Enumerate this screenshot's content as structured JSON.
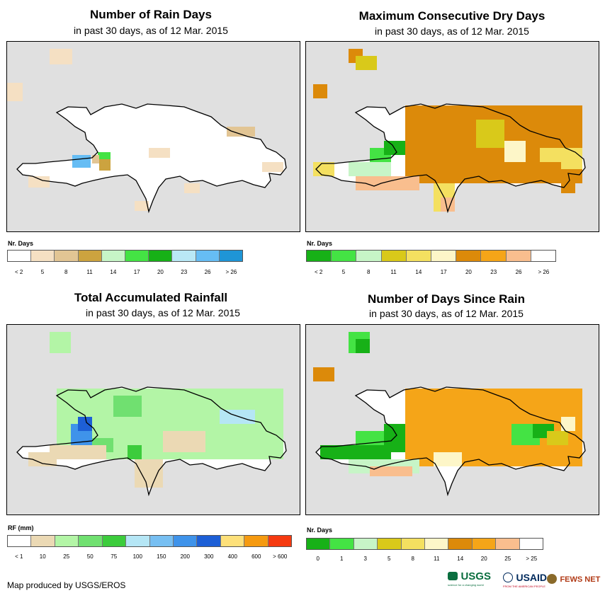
{
  "panels": [
    {
      "id": "rain-days",
      "title": "Number of Rain Days",
      "subtitle": "in past 30 days, as of 12 Mar. 2015",
      "legend_title": "Nr. Days",
      "legend_colors": [
        "#ffffff",
        "#f5e0c3",
        "#e2c594",
        "#cca33f",
        "#c7f5c7",
        "#44e344",
        "#17b117",
        "#b9e8f6",
        "#66bdf4",
        "#1f95d6"
      ],
      "legend_labels": [
        "< 2",
        "5",
        "8",
        "11",
        "14",
        "17",
        "20",
        "23",
        "26",
        "> 26"
      ],
      "legend_label_mode": "center"
    },
    {
      "id": "max-dry-days",
      "title": "Maximum Consecutive Dry Days",
      "subtitle": "in past 30 days, as of 12 Mar. 2015",
      "legend_title": "Nr. Days",
      "legend_colors": [
        "#17b117",
        "#44e344",
        "#c7f5c7",
        "#d9c91a",
        "#f4e060",
        "#fdf6c8",
        "#dc8a0a",
        "#f5a518",
        "#f9be8e",
        "#ffffff"
      ],
      "legend_labels": [
        "< 2",
        "5",
        "8",
        "11",
        "14",
        "17",
        "20",
        "23",
        "26",
        "> 26"
      ],
      "legend_label_mode": "center"
    },
    {
      "id": "total-rainfall",
      "title": "Total Accumulated Rainfall",
      "subtitle": "in past 30 days, as of 12 Mar. 2015",
      "legend_title": "RF (mm)",
      "legend_colors": [
        "#ffffff",
        "#ebd9b4",
        "#b3f5a6",
        "#70e070",
        "#3ccc3c",
        "#b5e6f5",
        "#77bff2",
        "#3f93ea",
        "#1d5fd6",
        "#fde07a",
        "#f59a10",
        "#f53a10"
      ],
      "legend_labels": [
        "< 1",
        "10",
        "25",
        "50",
        "75",
        "100",
        "150",
        "200",
        "300",
        "400",
        "600",
        "> 600"
      ],
      "legend_label_mode": "center"
    },
    {
      "id": "days-since-rain",
      "title": "Number of Days Since Rain",
      "subtitle": "in past 30 days, as of 12 Mar. 2015",
      "legend_title": "Nr. Days",
      "legend_colors": [
        "#17b117",
        "#44e344",
        "#c7f5c7",
        "#d9c91a",
        "#f4e060",
        "#fdf6c8",
        "#dc8a0a",
        "#f5a518",
        "#f9be8e",
        "#ffffff"
      ],
      "legend_labels": [
        "0",
        "1",
        "3",
        "5",
        "8",
        "11",
        "14",
        "20",
        "25",
        "> 25"
      ],
      "legend_label_mode": "center"
    }
  ],
  "footer": {
    "credit": "Map produced by USGS/EROS"
  },
  "logos": {
    "usgs": "USGS",
    "usgs_tagline": "science for a changing world",
    "usaid": "USAID",
    "usaid_tagline": "FROM THE AMERICAN PEOPLE",
    "fews": "FEWS NET"
  }
}
